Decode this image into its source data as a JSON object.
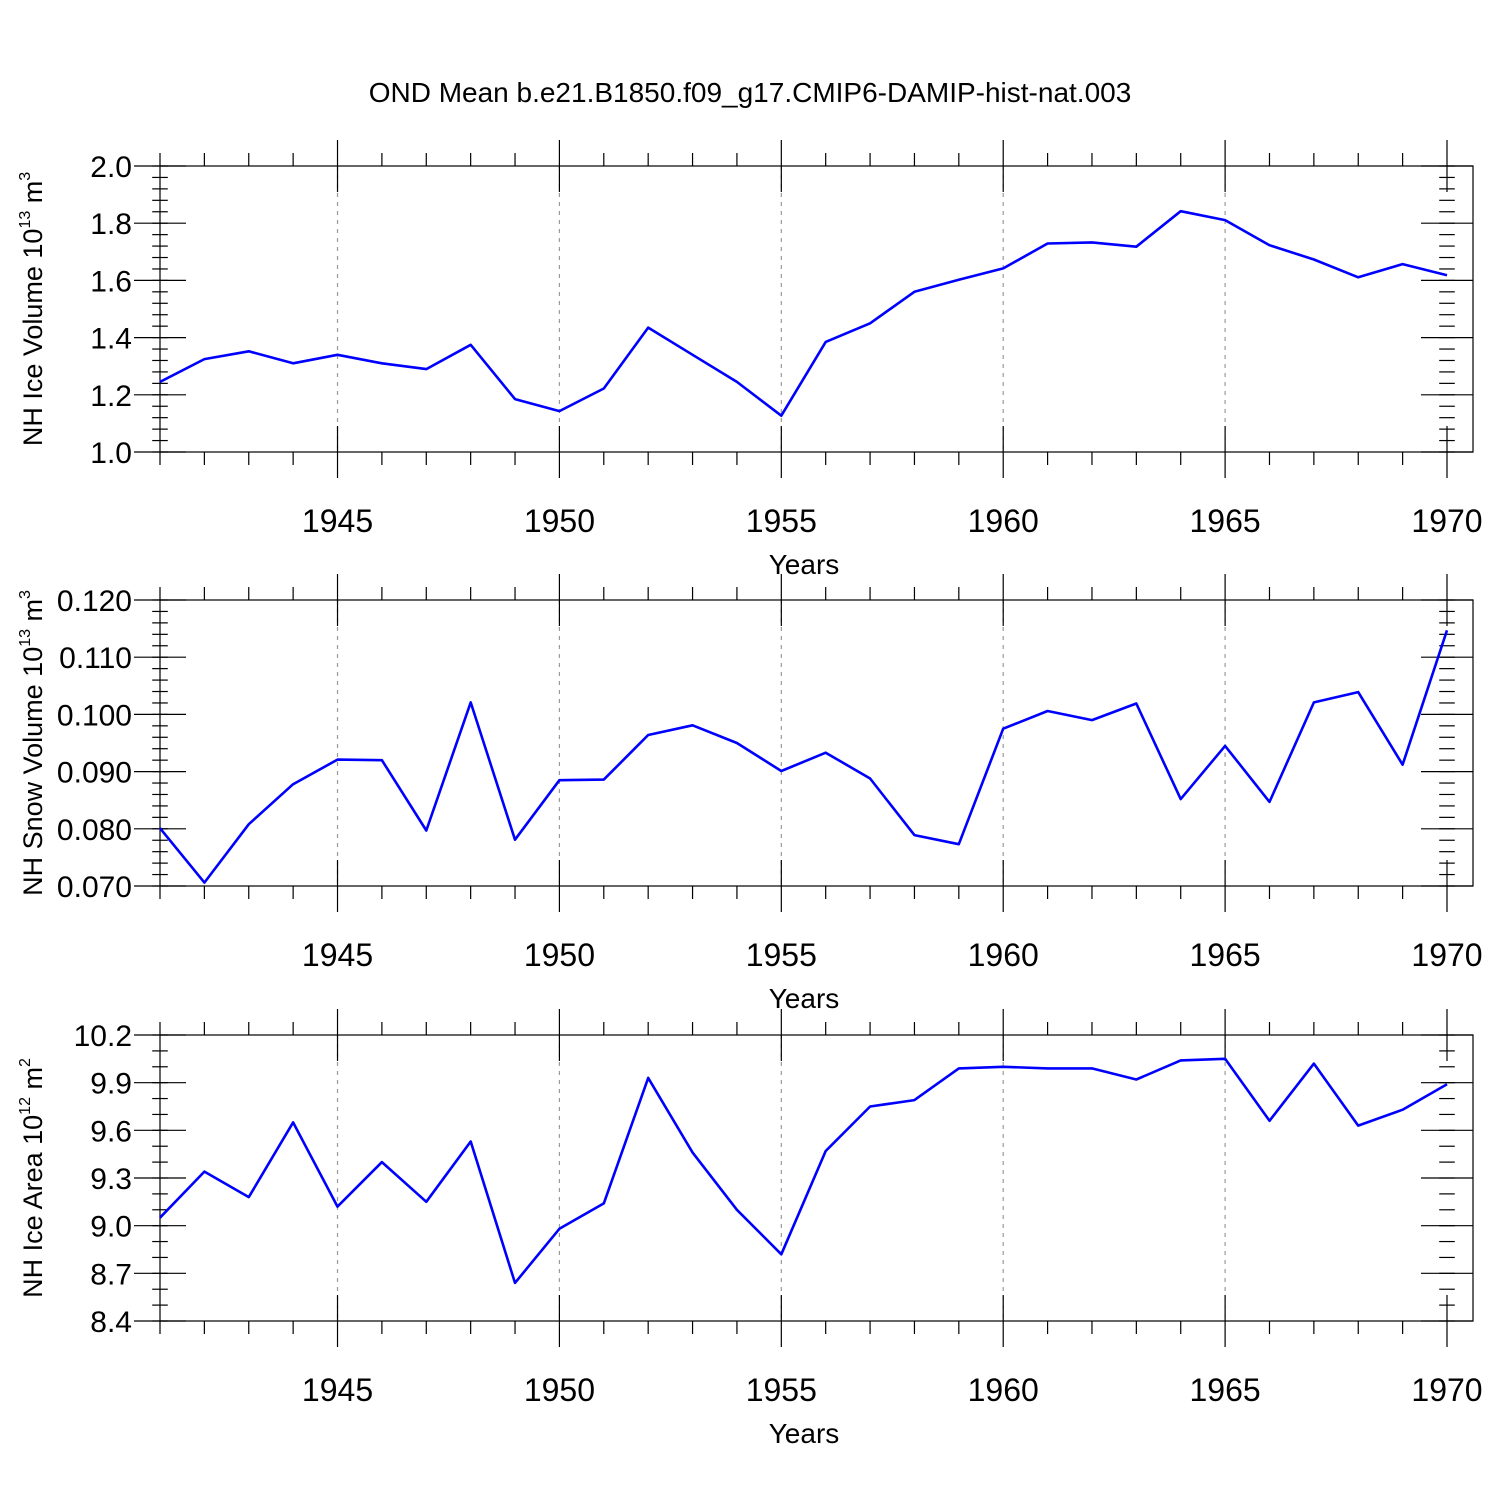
{
  "title": "OND Mean b.e21.B1850.f09_g17.CMIP6-DAMIP-hist-nat.003",
  "colors": {
    "line": "#0000ff",
    "grid": "#9a9a9a",
    "axes": "#000000"
  },
  "chart_data": [
    {
      "type": "line",
      "ylabel": {
        "main": "NH Ice Volume 10",
        "sup1": "13",
        "mid": " m",
        "sup2": "3"
      },
      "xlabel": "Years",
      "xlim": [
        1941,
        1970
      ],
      "ylim": [
        1.0,
        2.0
      ],
      "xticks": [
        "1945",
        "1950",
        "1955",
        "1960",
        "1965",
        "1970"
      ],
      "yticks": [
        "1.0",
        "1.2",
        "1.4",
        "1.6",
        "1.8",
        "2.0"
      ],
      "minor_y_step": 0.04,
      "grid_x": [
        1945,
        1950,
        1955,
        1960,
        1965
      ],
      "x": [
        1941,
        1942,
        1943,
        1944,
        1945,
        1946,
        1947,
        1948,
        1949,
        1950,
        1951,
        1952,
        1953,
        1954,
        1955,
        1956,
        1957,
        1958,
        1959,
        1960,
        1961,
        1962,
        1963,
        1964,
        1965,
        1966,
        1967,
        1968,
        1969,
        1970
      ],
      "values": [
        1.245,
        1.325,
        1.352,
        1.31,
        1.34,
        1.31,
        1.29,
        1.375,
        1.185,
        1.143,
        1.222,
        1.435,
        1.34,
        1.245,
        1.127,
        1.385,
        1.45,
        1.56,
        1.602,
        1.642,
        1.729,
        1.733,
        1.718,
        1.842,
        1.811,
        1.723,
        1.673,
        1.611,
        1.657,
        1.618
      ]
    },
    {
      "type": "line",
      "ylabel": {
        "main": "NH Snow Volume 10",
        "sup1": "13",
        "mid": " m",
        "sup2": "3"
      },
      "xlabel": "Years",
      "xlim": [
        1941,
        1970
      ],
      "ylim": [
        0.07,
        0.12
      ],
      "xticks": [
        "1945",
        "1950",
        "1955",
        "1960",
        "1965",
        "1970"
      ],
      "yticks": [
        "0.070",
        "0.080",
        "0.090",
        "0.100",
        "0.110",
        "0.120"
      ],
      "minor_y_step": 0.002,
      "grid_x": [
        1945,
        1950,
        1955,
        1960,
        1965
      ],
      "x": [
        1941,
        1942,
        1943,
        1944,
        1945,
        1946,
        1947,
        1948,
        1949,
        1950,
        1951,
        1952,
        1953,
        1954,
        1955,
        1956,
        1957,
        1958,
        1959,
        1960,
        1961,
        1962,
        1963,
        1964,
        1965,
        1966,
        1967,
        1968,
        1969,
        1970
      ],
      "values": [
        0.0801,
        0.0706,
        0.0808,
        0.0878,
        0.0921,
        0.092,
        0.0797,
        0.1021,
        0.0781,
        0.0885,
        0.0886,
        0.0964,
        0.0981,
        0.095,
        0.0901,
        0.0933,
        0.0888,
        0.0789,
        0.0773,
        0.0975,
        0.1006,
        0.099,
        0.1019,
        0.0852,
        0.0945,
        0.0847,
        0.1021,
        0.1039,
        0.0912,
        0.1147
      ]
    },
    {
      "type": "line",
      "ylabel": {
        "main": "NH Ice Area 10",
        "sup1": "12",
        "mid": " m",
        "sup2": "2"
      },
      "xlabel": "Years",
      "xlim": [
        1941,
        1970
      ],
      "ylim": [
        8.4,
        10.2
      ],
      "xticks": [
        "1945",
        "1950",
        "1955",
        "1960",
        "1965",
        "1970"
      ],
      "yticks": [
        "8.4",
        "8.7",
        "9.0",
        "9.3",
        "9.6",
        "9.9",
        "10.2"
      ],
      "minor_y_step": 0.1,
      "grid_x": [
        1945,
        1950,
        1955,
        1960,
        1965
      ],
      "x": [
        1941,
        1942,
        1943,
        1944,
        1945,
        1946,
        1947,
        1948,
        1949,
        1950,
        1951,
        1952,
        1953,
        1954,
        1955,
        1956,
        1957,
        1958,
        1959,
        1960,
        1961,
        1962,
        1963,
        1964,
        1965,
        1966,
        1967,
        1968,
        1969,
        1970
      ],
      "values": [
        9.05,
        9.34,
        9.18,
        9.65,
        9.12,
        9.4,
        9.15,
        9.53,
        8.64,
        8.98,
        9.14,
        9.93,
        9.46,
        9.1,
        8.82,
        9.47,
        9.75,
        9.79,
        9.99,
        10.0,
        9.99,
        9.99,
        9.92,
        10.04,
        10.05,
        9.66,
        10.02,
        9.63,
        9.73,
        9.89
      ]
    }
  ]
}
